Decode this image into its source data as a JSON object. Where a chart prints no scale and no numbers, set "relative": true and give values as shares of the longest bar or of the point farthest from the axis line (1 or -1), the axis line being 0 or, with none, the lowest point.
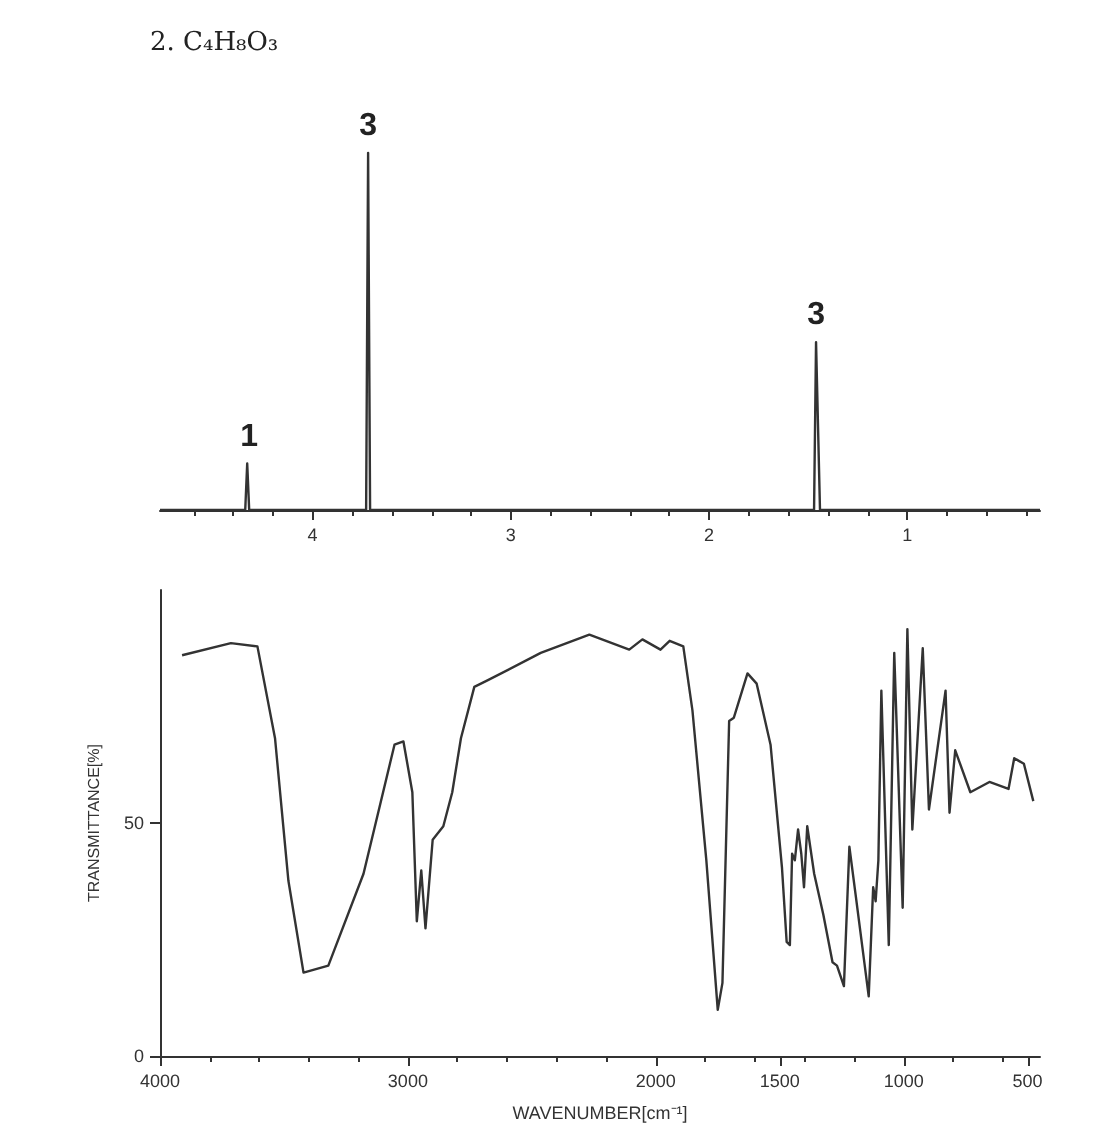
{
  "chart_data": [
    {
      "type": "line",
      "title": "2. C₄H₈O₃",
      "relative": true,
      "color": "#333333",
      "marker": "none",
      "grid": false,
      "x": [
        4.77,
        4.34,
        4.33,
        4.32,
        4.31,
        3.73,
        3.72,
        3.71,
        1.47,
        1.46,
        1.44,
        0.33
      ],
      "values": [
        0,
        0,
        0.13,
        0,
        0,
        0,
        1,
        0,
        0,
        0.47,
        0,
        0
      ],
      "xlim": [
        4.77,
        0.33
      ],
      "xticks": [
        4,
        3,
        2,
        1
      ],
      "annotations": [
        {
          "text": "1",
          "x": 4.32,
          "y": 0.13
        },
        {
          "text": "3",
          "x": 3.72,
          "y": 1
        },
        {
          "text": "3",
          "x": 1.46,
          "y": 0.47
        }
      ]
    },
    {
      "type": "line",
      "color": "#333333",
      "marker": "none",
      "grid": false,
      "xlabel": "WAVENUMBER[cm⁻¹]",
      "ylabel": "TRANSMITTANCE[%]",
      "x": [
        3911,
        3714,
        3607,
        3536,
        3482,
        3421,
        3321,
        3179,
        3054,
        3018,
        2982,
        2964,
        2946,
        2929,
        2900,
        2857,
        2821,
        2786,
        2732,
        2679,
        2464,
        2268,
        2107,
        2054,
        1981,
        1944,
        1889,
        1852,
        1796,
        1750,
        1731,
        1704,
        1685,
        1630,
        1593,
        1537,
        1491,
        1472,
        1459,
        1450,
        1439,
        1426,
        1413,
        1402,
        1389,
        1361,
        1324,
        1287,
        1269,
        1241,
        1219,
        1194,
        1141,
        1123,
        1113,
        1102,
        1090,
        1060,
        1038,
        1004,
        985,
        965,
        923,
        898,
        831,
        815,
        792,
        731,
        654,
        577,
        554,
        515,
        477
      ],
      "values": [
        86.0,
        88.6,
        87.9,
        68.2,
        37.6,
        17.9,
        19.4,
        39.1,
        66.8,
        67.5,
        56.6,
        28.9,
        39.8,
        27.4,
        46.4,
        49.3,
        56.6,
        68.2,
        79.2,
        80.6,
        86.5,
        90.4,
        87.2,
        89.4,
        87.2,
        89.1,
        87.9,
        74.1,
        42.0,
        9.9,
        15.7,
        71.9,
        72.6,
        82.1,
        79.9,
        66.8,
        40.5,
        24.5,
        23.8,
        43.4,
        42.0,
        48.6,
        43.4,
        36.2,
        49.3,
        39.1,
        30.3,
        20.1,
        19.4,
        15.0,
        44.9,
        34.7,
        12.8,
        36.2,
        33.2,
        42.0,
        78.4,
        23.8,
        86.5,
        31.8,
        91.6,
        48.6,
        87.5,
        52.9,
        78.4,
        52.2,
        65.6,
        56.6,
        58.8,
        57.3,
        63.9,
        62.7,
        54.7
      ],
      "xlim": [
        4000,
        450
      ],
      "xticks": [
        4000,
        3000,
        2000,
        1500,
        1000,
        500
      ],
      "ylim": [
        0,
        100
      ],
      "yticks": [
        0,
        50
      ]
    }
  ]
}
